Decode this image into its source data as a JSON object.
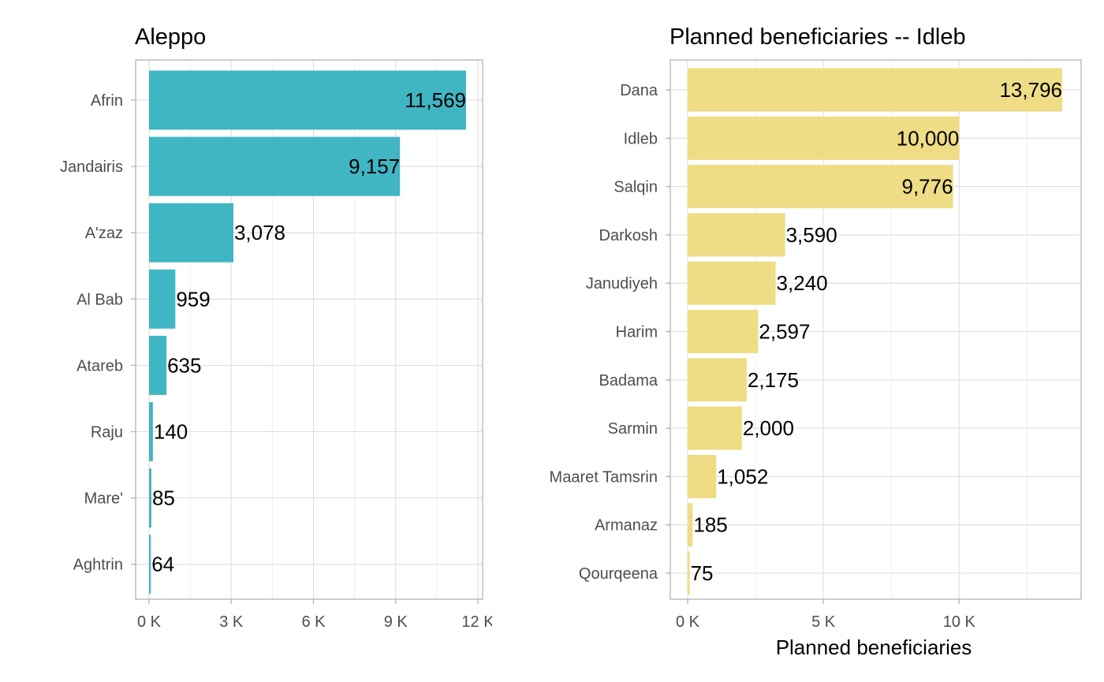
{
  "chart_data": [
    {
      "type": "bar",
      "orientation": "horizontal",
      "title": "Aleppo",
      "xlabel": "",
      "ylabel": "",
      "categories": [
        "Afrin",
        "Jandairis",
        "A'zaz",
        "Al Bab",
        "Atareb",
        "Raju",
        "Mare'",
        "Aghtrin"
      ],
      "values": [
        11569,
        9157,
        3078,
        959,
        635,
        140,
        85,
        64
      ],
      "value_labels": [
        "11,569",
        "9,157",
        "3,078",
        "959",
        "635",
        "140",
        "85",
        "64"
      ],
      "xlim": [
        0,
        12000
      ],
      "ticks": [
        0,
        3000,
        6000,
        9000,
        12000
      ],
      "tick_labels": [
        "0 K",
        "3 K",
        "6 K",
        "9 K",
        "12 K"
      ],
      "color": "#40b5c4",
      "grid": true
    },
    {
      "type": "bar",
      "orientation": "horizontal",
      "title": "Planned beneficiaries -- Idleb",
      "xlabel": "Planned beneficiaries",
      "ylabel": "",
      "categories": [
        "Dana",
        "Idleb",
        "Salqin",
        "Darkosh",
        "Janudiyeh",
        "Harim",
        "Badama",
        "Sarmin",
        "Maaret Tamsrin",
        "Armanaz",
        "Qourqeena"
      ],
      "values": [
        13796,
        10000,
        9776,
        3590,
        3240,
        2597,
        2175,
        2000,
        1052,
        185,
        75
      ],
      "value_labels": [
        "13,796",
        "10,000",
        "9,776",
        "3,590",
        "3,240",
        "2,597",
        "2,175",
        "2,000",
        "1,052",
        "185",
        "75"
      ],
      "xlim": [
        0,
        14000
      ],
      "ticks": [
        0,
        5000,
        10000
      ],
      "tick_labels": [
        "0 K",
        "5 K",
        "10 K"
      ],
      "color": "#eedd85",
      "grid": true
    }
  ]
}
